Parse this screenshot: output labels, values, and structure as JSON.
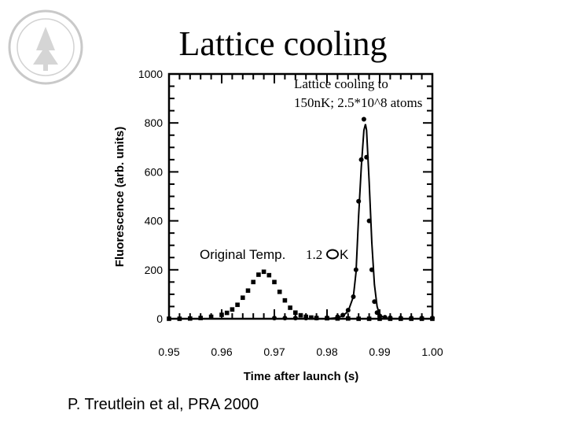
{
  "slide": {
    "title": "Lattice cooling",
    "citation": "P. Treutlein et al, PRA 2000"
  },
  "chart_data": {
    "type": "scatter",
    "title": "",
    "xlabel": "Time after launch (s)",
    "ylabel": "Fluorescence (arb. units)",
    "xlim": [
      0.95,
      1.0
    ],
    "ylim": [
      0,
      1000
    ],
    "x_ticks": [
      "0.95",
      "0.96",
      "0.97",
      "0.98",
      "0.99",
      "1.00"
    ],
    "y_ticks": [
      "0",
      "200",
      "400",
      "600",
      "800",
      "1000"
    ],
    "x_tick_values": [
      0.95,
      0.96,
      0.97,
      0.98,
      0.99,
      1.0
    ],
    "y_tick_values": [
      0,
      200,
      400,
      600,
      800,
      1000
    ],
    "annotations": {
      "lattice_line1": "Lattice cooling to",
      "lattice_line2": "150nK; 2.5*10^8 atoms",
      "original_prefix": "Original Temp. ",
      "original_value": "1.2",
      "original_unit": "K"
    },
    "series": [
      {
        "marker": "square",
        "x": [
          0.95,
          0.952,
          0.954,
          0.956,
          0.958,
          0.96,
          0.961,
          0.962,
          0.963,
          0.964,
          0.965,
          0.966,
          0.967,
          0.968,
          0.969,
          0.97,
          0.971,
          0.972,
          0.973,
          0.974,
          0.975,
          0.976,
          0.977,
          0.978,
          0.98,
          0.982,
          0.984,
          0.986,
          0.988,
          0.99,
          0.992,
          0.994,
          0.996,
          0.998,
          1.0
        ],
        "y": [
          0,
          0,
          1,
          3,
          8,
          16,
          24,
          38,
          57,
          86,
          115,
          150,
          180,
          192,
          178,
          150,
          110,
          75,
          45,
          25,
          14,
          8,
          5,
          3,
          2,
          1,
          1,
          0,
          0,
          0,
          0,
          0,
          0,
          0,
          0
        ]
      },
      {
        "marker": "circle",
        "x": [
          0.97,
          0.972,
          0.974,
          0.976,
          0.978,
          0.98,
          0.982,
          0.983,
          0.984,
          0.985,
          0.9855,
          0.986,
          0.9865,
          0.987,
          0.9875,
          0.988,
          0.9885,
          0.989,
          0.9895,
          0.99,
          0.991,
          0.992,
          0.994,
          0.996,
          0.998,
          1.0
        ],
        "y": [
          3,
          3,
          3,
          3,
          3,
          4,
          8,
          15,
          35,
          90,
          200,
          480,
          650,
          815,
          660,
          400,
          200,
          70,
          25,
          12,
          6,
          4,
          3,
          3,
          3,
          3
        ]
      }
    ],
    "fit_curve": {
      "x": [
        0.97,
        0.98,
        0.982,
        0.983,
        0.984,
        0.985,
        0.9855,
        0.986,
        0.9865,
        0.987,
        0.9873,
        0.9875,
        0.988,
        0.9885,
        0.989,
        0.9895,
        0.99,
        0.991,
        0.992,
        0.994,
        1.0
      ],
      "y": [
        0,
        0,
        4,
        12,
        30,
        90,
        190,
        420,
        620,
        770,
        795,
        770,
        560,
        310,
        140,
        50,
        15,
        3,
        1,
        0,
        0
      ]
    }
  }
}
